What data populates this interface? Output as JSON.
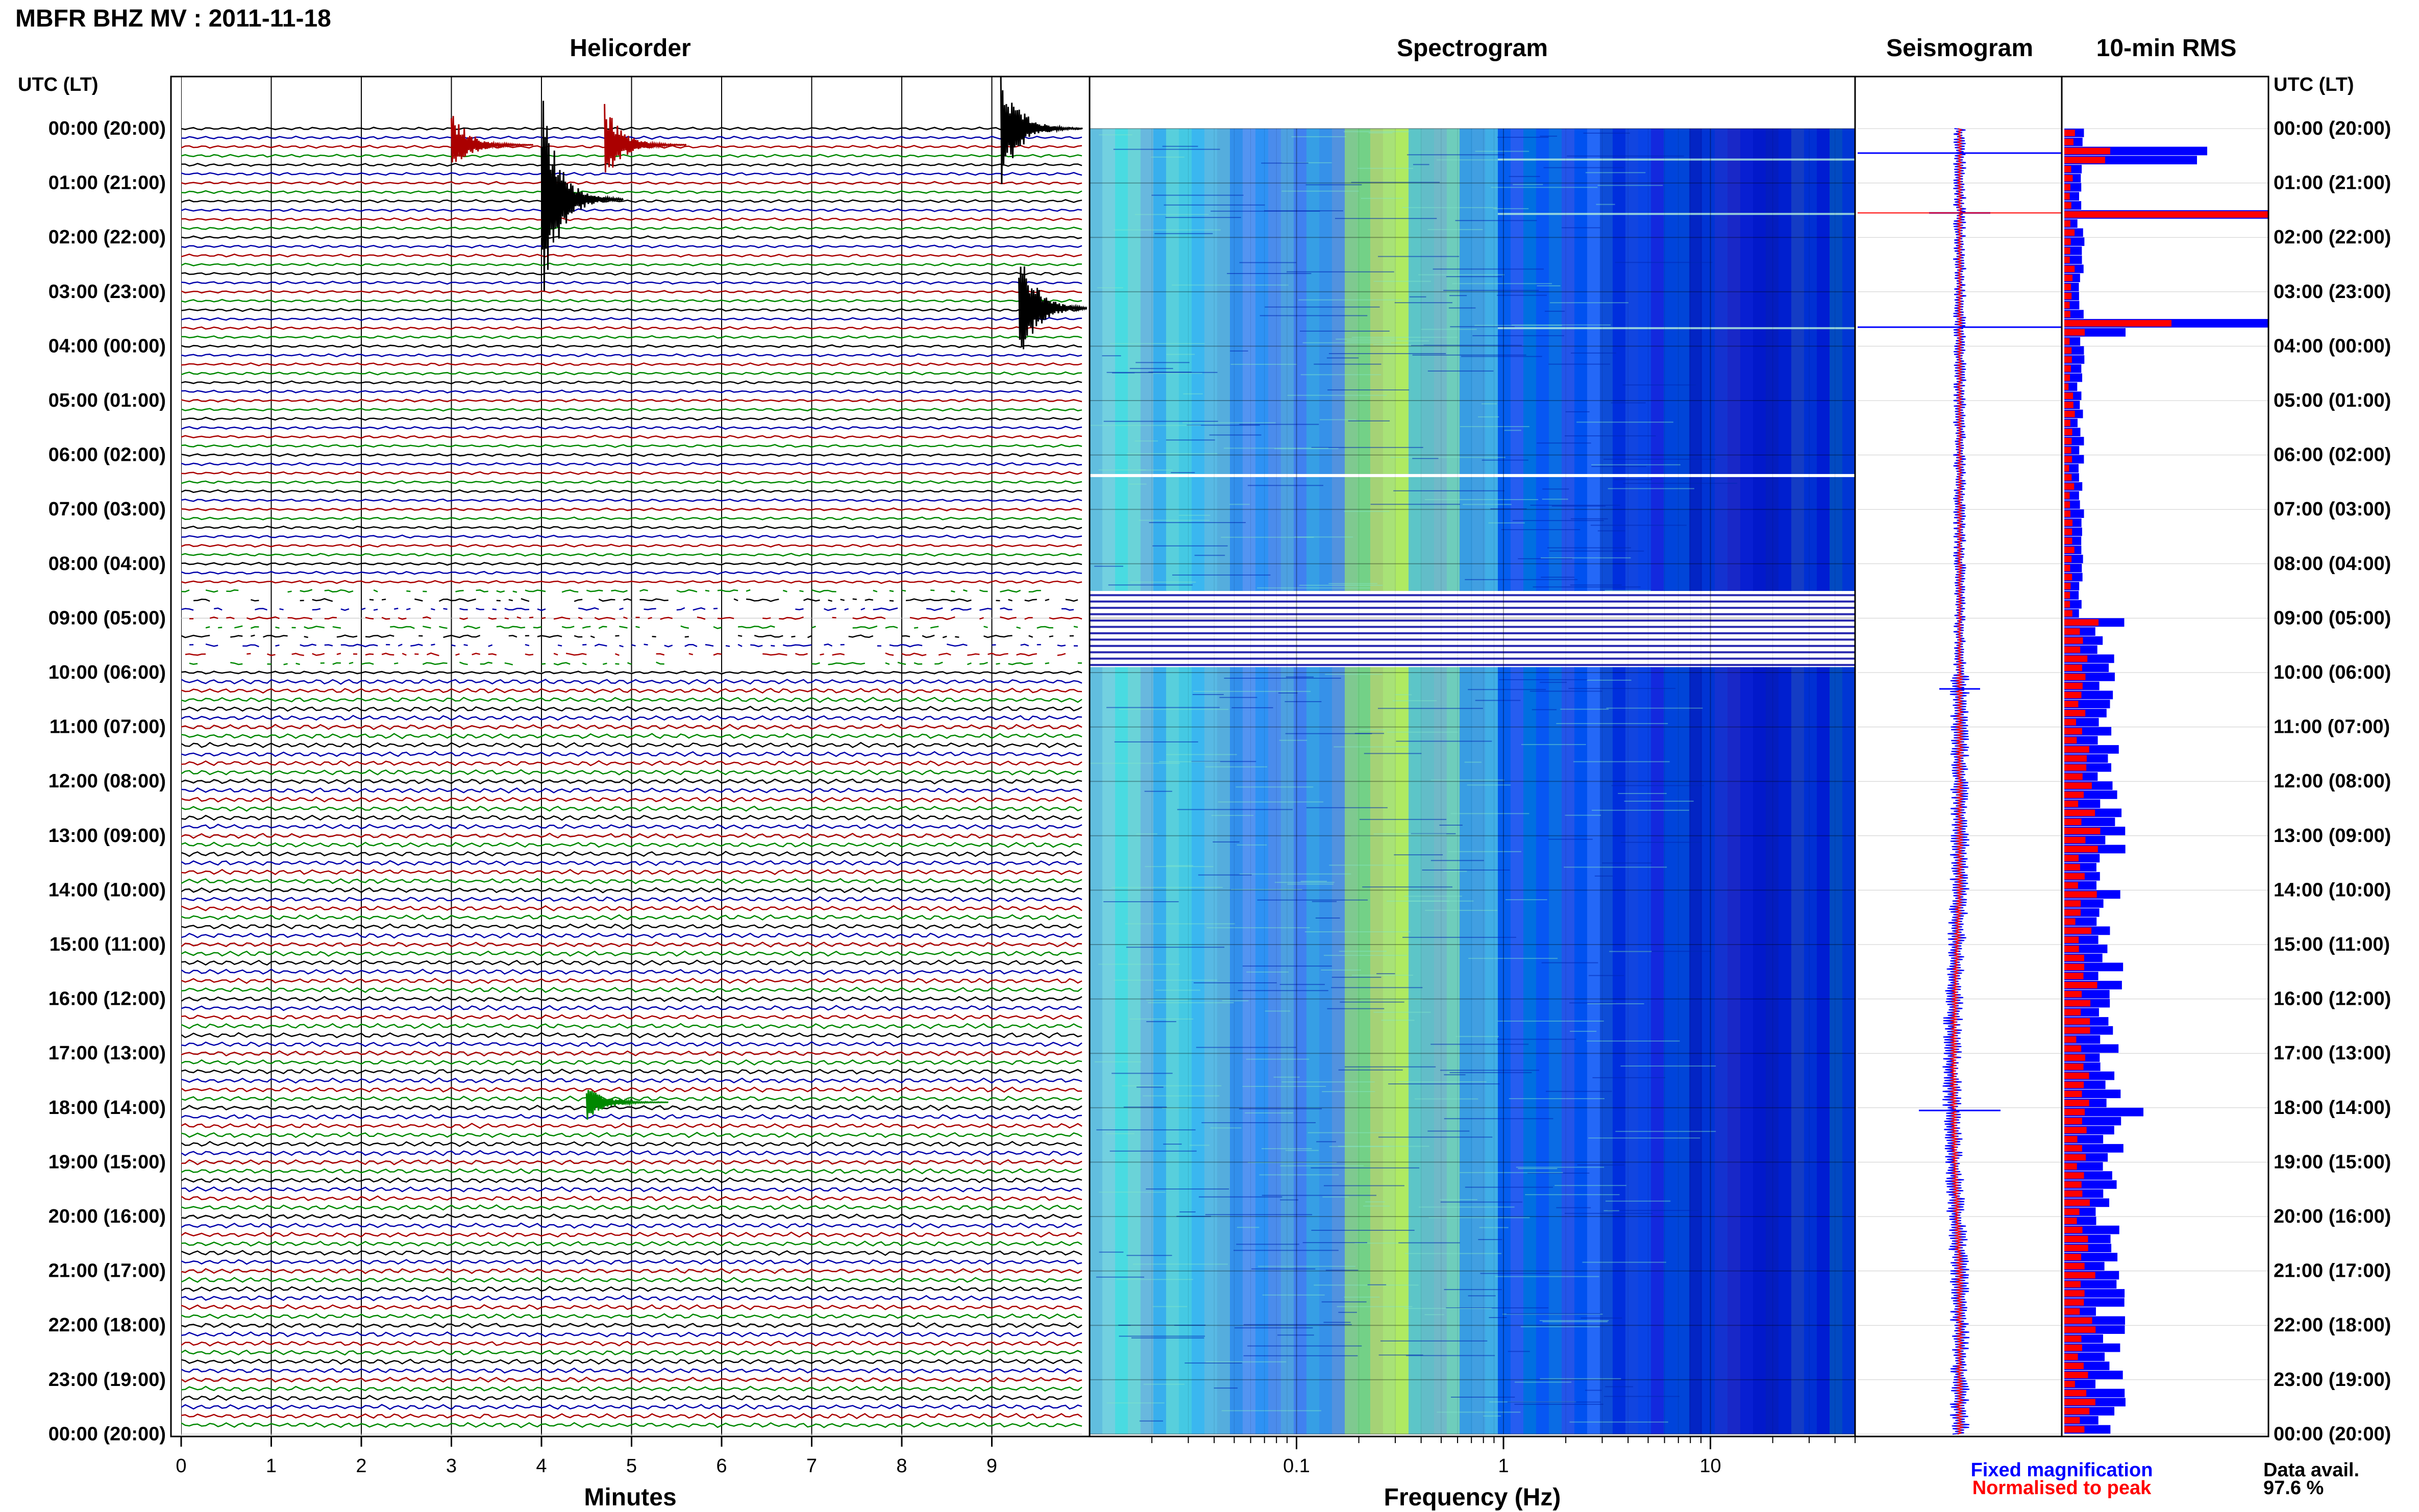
{
  "header": {
    "station_title": "MBFR BHZ MV : 2011-11-18",
    "utc_label": "UTC (LT)"
  },
  "panels": {
    "helicorder": "Helicorder",
    "spectrogram": "Spectrogram",
    "seismogram": "Seismogram",
    "rms": "10-min RMS"
  },
  "time_labels": [
    "00:00 (20:00)",
    "01:00 (21:00)",
    "02:00 (22:00)",
    "03:00 (23:00)",
    "04:00 (00:00)",
    "05:00 (01:00)",
    "06:00 (02:00)",
    "07:00 (03:00)",
    "08:00 (04:00)",
    "09:00 (05:00)",
    "10:00 (06:00)",
    "11:00 (07:00)",
    "12:00 (08:00)",
    "13:00 (09:00)",
    "14:00 (10:00)",
    "15:00 (11:00)",
    "16:00 (12:00)",
    "17:00 (13:00)",
    "18:00 (14:00)",
    "19:00 (15:00)",
    "20:00 (16:00)",
    "21:00 (17:00)",
    "22:00 (18:00)",
    "23:00 (19:00)",
    "00:00 (20:00)"
  ],
  "footer": {
    "minutes_label": "Minutes",
    "frequency_label": "Frequency (Hz)",
    "legend_fixed": "Fixed magnification",
    "legend_normalised": "Normalised to peak",
    "data_avail_label": "Data avail.",
    "data_avail_value": "97.6 %"
  },
  "colors": {
    "trace_cycle": [
      "#000000",
      "#0000aa",
      "#aa0000",
      "#008800"
    ],
    "fixed": "#0000ff",
    "normalised": "#ff0000",
    "grid": "#333333"
  },
  "chart_data": [
    {
      "type": "line",
      "title": "Helicorder",
      "xlabel": "Minutes",
      "x_ticks": [
        0,
        1,
        2,
        3,
        4,
        5,
        6,
        7,
        8,
        9
      ],
      "xlim": [
        0,
        10
      ],
      "rows_per_hour": 6,
      "hours": 24,
      "events": [
        {
          "hour": 0.0,
          "minute": 9.1,
          "amp": 0.9
        },
        {
          "hour": 0.3,
          "minute": 3.0,
          "amp": 0.5
        },
        {
          "hour": 0.3,
          "minute": 4.7,
          "amp": 0.6
        },
        {
          "hour": 1.3,
          "minute": 4.0,
          "amp": 1.6
        },
        {
          "hour": 3.3,
          "minute": 9.3,
          "amp": 0.9
        },
        {
          "hour": 17.9,
          "minute": 4.5,
          "amp": 0.3
        }
      ],
      "data_gap_hours": [
        8.5,
        9.9
      ]
    },
    {
      "type": "heatmap",
      "title": "Spectrogram",
      "xlabel": "Frequency (Hz)",
      "x_scale": "log",
      "x_ticks": [
        0.1,
        1,
        10
      ],
      "xlim": [
        0.01,
        50
      ],
      "y": "time (UTC)",
      "gap_hours": [
        8.5,
        9.9
      ]
    },
    {
      "type": "line",
      "title": "Seismogram",
      "series": [
        {
          "name": "Fixed magnification"
        },
        {
          "name": "Normalised to peak"
        }
      ]
    },
    {
      "type": "bar",
      "title": "10-min RMS",
      "bin_minutes": 10,
      "series": [
        {
          "name": "Fixed magnification"
        },
        {
          "name": "Normalised to peak"
        }
      ]
    }
  ]
}
